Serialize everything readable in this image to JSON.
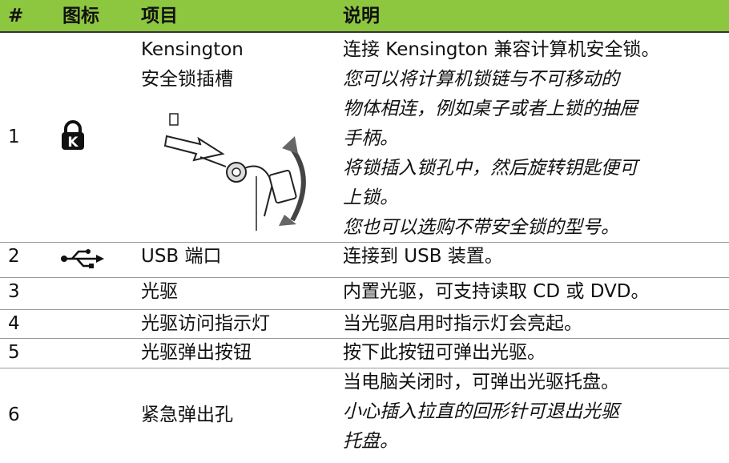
{
  "table": {
    "header": [
      "#",
      "图标",
      "项目",
      "说明"
    ],
    "rows": [
      {
        "number": "1",
        "item": [
          "Kensington",
          "安全锁插槽"
        ],
        "description": [
          {
            "text": "连接 Kensington 兼容计算机安全锁。"
          },
          {
            "text": "您可以将计算机锁链与不可移动的",
            "italic": true
          },
          {
            "text": "物体相连，例如桌子或者上锁的抽屉",
            "italic": true
          },
          {
            "text": "手柄。",
            "italic": true
          },
          {
            "text": "将锁插入锁孔中，然后旋转钥匙便可",
            "italic": true
          },
          {
            "text": "上锁。",
            "italic": true
          },
          {
            "text": "您也可以选购不带安全锁的型号。",
            "italic": true
          }
        ]
      },
      {
        "number": "2",
        "item": [
          "USB 端口"
        ],
        "description": [
          {
            "text": "连接到 USB 装置。"
          }
        ]
      },
      {
        "number": "3",
        "item": [
          "光驱"
        ],
        "description": [
          {
            "text": "内置光驱，可支持读取 CD 或 DVD。"
          }
        ]
      },
      {
        "number": "4",
        "item": [
          "光驱访问指示灯"
        ],
        "description": [
          {
            "text": "当光驱启用时指示灯会亮起。"
          }
        ]
      },
      {
        "number": "5",
        "item": [
          "光驱弹出按钮"
        ],
        "description": [
          {
            "text": "按下此按钮可弹出光驱。"
          }
        ]
      },
      {
        "number": "6",
        "item": [
          "紧急弹出孔"
        ],
        "description": [
          {
            "text": "当电脑关闭时，可弹出光驱托盘。"
          },
          {
            "text": "小心插入拉直的回形针可退出光驱",
            "italic": true
          },
          {
            "text": "托盘。",
            "italic": true
          }
        ]
      }
    ]
  }
}
